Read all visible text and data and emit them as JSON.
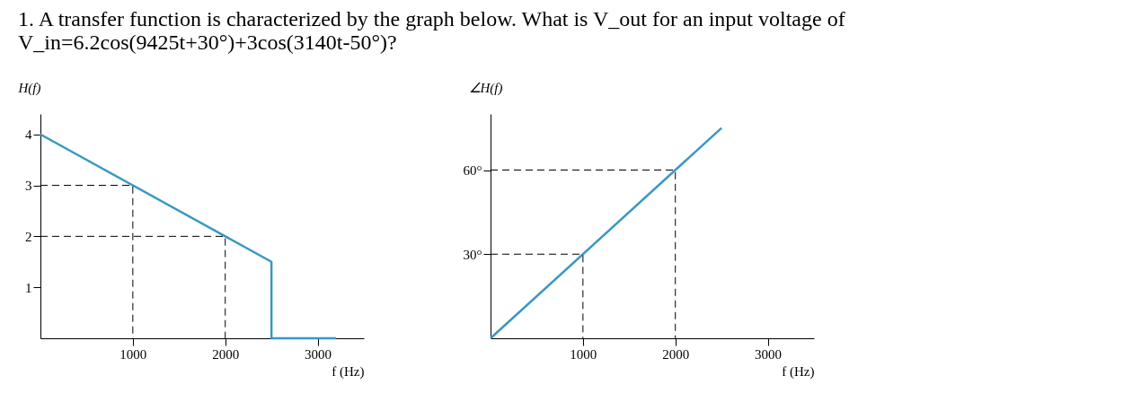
{
  "chart_data": [
    {
      "type": "line",
      "title": "1. A transfer function is characterized by the graph below. What is V_out for an input voltage of\nV_in=6.2cos(9425t+30°)+3cos(3140t-50°)?",
      "xlabel": "f (Hz)",
      "ylabel": "H(f)",
      "xlim": [
        0,
        3500
      ],
      "ylim": [
        0,
        4.4
      ],
      "xticks": [
        1000,
        2000,
        3000
      ],
      "yticks": [
        1,
        2,
        3,
        4
      ],
      "grid": false,
      "marker": "none",
      "series": [
        {
          "color": "#3a97c1",
          "line_style": "solid",
          "x": [
            0,
            2500,
            2500,
            3200
          ],
          "values": [
            4,
            1.5,
            0,
            0
          ]
        },
        {
          "color": "#000000",
          "line_style": "dashed",
          "x": [
            0,
            1000,
            1000
          ],
          "values": [
            3,
            3,
            0
          ]
        },
        {
          "color": "#000000",
          "line_style": "dashed",
          "x": [
            0,
            2000,
            2000
          ],
          "values": [
            2,
            2,
            0
          ]
        }
      ]
    },
    {
      "type": "line",
      "xlabel": "f (Hz)",
      "ylabel": "∠H(f)",
      "xlim": [
        0,
        3500
      ],
      "ylim": [
        0,
        80
      ],
      "xticks": [
        1000,
        2000,
        3000
      ],
      "yticks": [
        {
          "value": 30,
          "label": "30°"
        },
        {
          "value": 60,
          "label": "60°"
        }
      ],
      "grid": false,
      "marker": "none",
      "series": [
        {
          "color": "#3a97c1",
          "line_style": "solid",
          "x": [
            0,
            2500
          ],
          "values": [
            0,
            75
          ]
        },
        {
          "color": "#000000",
          "line_style": "dashed",
          "x": [
            0,
            1000,
            1000
          ],
          "values": [
            30,
            30,
            0
          ]
        },
        {
          "color": "#000000",
          "line_style": "dashed",
          "x": [
            0,
            2000,
            2000
          ],
          "values": [
            60,
            60,
            0
          ]
        }
      ]
    }
  ]
}
